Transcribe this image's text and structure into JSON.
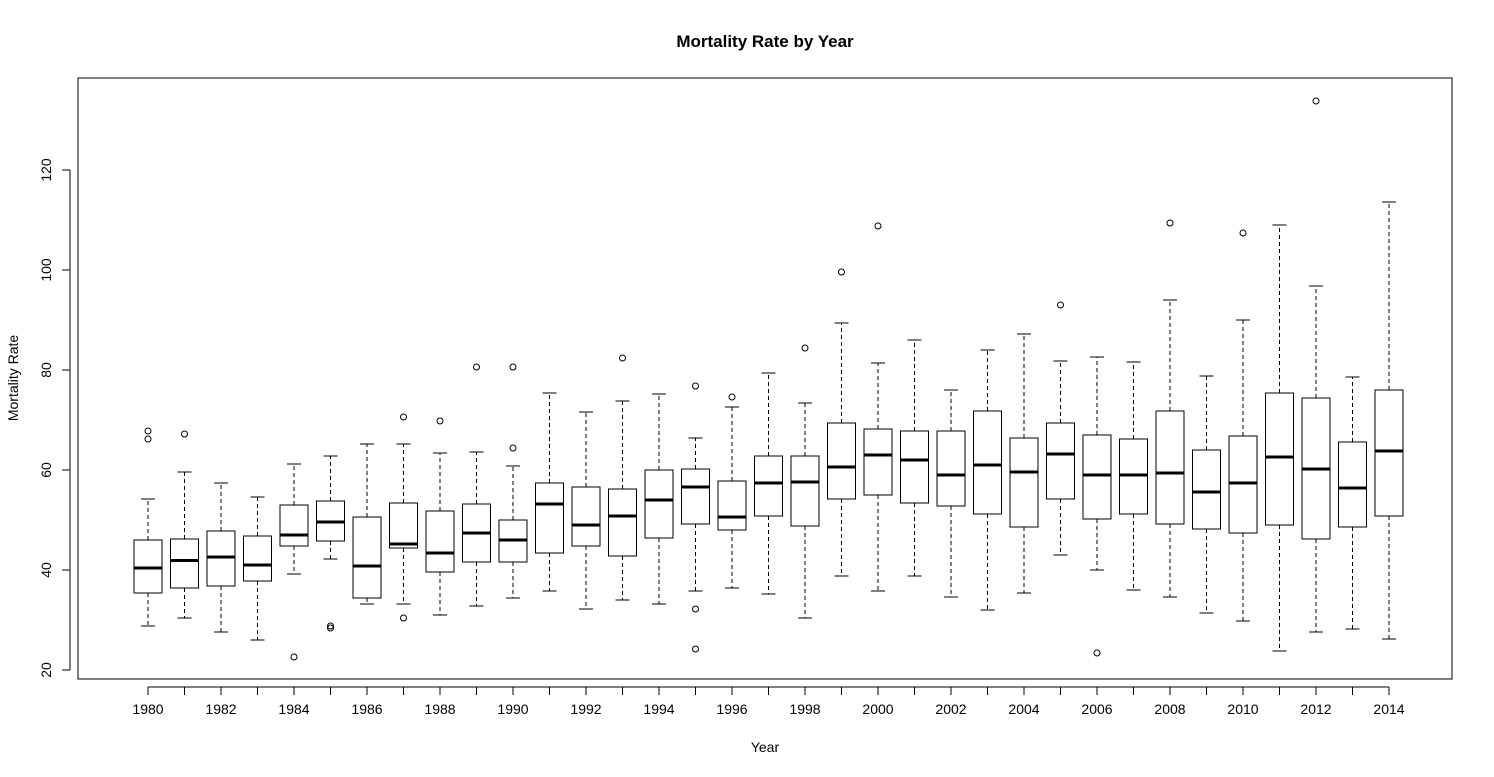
{
  "chart_data": {
    "type": "boxplot",
    "title": "Mortality Rate by Year",
    "xlabel": "Year",
    "ylabel": "Mortality Rate",
    "ylim": [
      18,
      138
    ],
    "yticks": [
      20,
      40,
      60,
      80,
      100,
      120
    ],
    "xtick_labels": [
      "1980",
      "1982",
      "1984",
      "1986",
      "1988",
      "1990",
      "1992",
      "1994",
      "1996",
      "1998",
      "2000",
      "2002",
      "2004",
      "2006",
      "2008",
      "2010",
      "2012",
      "2014"
    ],
    "grid": false,
    "legend": "none",
    "boxes": [
      {
        "year": "1980",
        "whisker_low": 28.8,
        "q1": 35.4,
        "median": 40.4,
        "q3": 46.0,
        "whisker_high": 54.2,
        "outliers": [
          66.2,
          67.8
        ]
      },
      {
        "year": "1981",
        "whisker_low": 30.4,
        "q1": 36.4,
        "median": 41.9,
        "q3": 46.2,
        "whisker_high": 59.6,
        "outliers": [
          67.2
        ]
      },
      {
        "year": "1982",
        "whisker_low": 27.6,
        "q1": 36.8,
        "median": 42.6,
        "q3": 47.8,
        "whisker_high": 57.4,
        "outliers": []
      },
      {
        "year": "1983",
        "whisker_low": 26.0,
        "q1": 37.8,
        "median": 41.0,
        "q3": 46.8,
        "whisker_high": 54.6,
        "outliers": []
      },
      {
        "year": "1984",
        "whisker_low": 39.2,
        "q1": 44.8,
        "median": 47.0,
        "q3": 53.0,
        "whisker_high": 61.2,
        "outliers": [
          22.6
        ]
      },
      {
        "year": "1985",
        "whisker_low": 42.2,
        "q1": 45.8,
        "median": 49.6,
        "q3": 53.8,
        "whisker_high": 62.8,
        "outliers": [
          28.4,
          28.8
        ]
      },
      {
        "year": "1986",
        "whisker_low": 33.2,
        "q1": 34.4,
        "median": 40.8,
        "q3": 50.6,
        "whisker_high": 65.2,
        "outliers": []
      },
      {
        "year": "1987",
        "whisker_low": 33.2,
        "q1": 44.4,
        "median": 45.2,
        "q3": 53.4,
        "whisker_high": 65.2,
        "outliers": [
          30.4,
          70.6
        ]
      },
      {
        "year": "1988",
        "whisker_low": 31.0,
        "q1": 39.6,
        "median": 43.4,
        "q3": 51.8,
        "whisker_high": 63.4,
        "outliers": [
          69.8
        ]
      },
      {
        "year": "1989",
        "whisker_low": 32.8,
        "q1": 41.6,
        "median": 47.4,
        "q3": 53.2,
        "whisker_high": 63.6,
        "outliers": [
          80.6
        ]
      },
      {
        "year": "1990",
        "whisker_low": 34.4,
        "q1": 41.6,
        "median": 46.0,
        "q3": 50.0,
        "whisker_high": 60.8,
        "outliers": [
          64.4,
          80.6
        ]
      },
      {
        "year": "1991",
        "whisker_low": 35.8,
        "q1": 43.4,
        "median": 53.2,
        "q3": 57.4,
        "whisker_high": 75.4,
        "outliers": []
      },
      {
        "year": "1992",
        "whisker_low": 32.2,
        "q1": 44.8,
        "median": 49.0,
        "q3": 56.6,
        "whisker_high": 71.6,
        "outliers": []
      },
      {
        "year": "1993",
        "whisker_low": 34.0,
        "q1": 42.8,
        "median": 50.8,
        "q3": 56.2,
        "whisker_high": 73.8,
        "outliers": [
          82.4
        ]
      },
      {
        "year": "1994",
        "whisker_low": 33.2,
        "q1": 46.4,
        "median": 54.0,
        "q3": 60.0,
        "whisker_high": 75.2,
        "outliers": []
      },
      {
        "year": "1995",
        "whisker_low": 35.8,
        "q1": 49.2,
        "median": 56.6,
        "q3": 60.2,
        "whisker_high": 66.4,
        "outliers": [
          24.2,
          32.2,
          76.8
        ]
      },
      {
        "year": "1996",
        "whisker_low": 36.4,
        "q1": 48.0,
        "median": 50.6,
        "q3": 57.8,
        "whisker_high": 72.6,
        "outliers": [
          74.6
        ]
      },
      {
        "year": "1997",
        "whisker_low": 35.2,
        "q1": 50.8,
        "median": 57.4,
        "q3": 62.8,
        "whisker_high": 79.4,
        "outliers": []
      },
      {
        "year": "1998",
        "whisker_low": 30.4,
        "q1": 48.8,
        "median": 57.6,
        "q3": 62.8,
        "whisker_high": 73.4,
        "outliers": [
          84.4
        ]
      },
      {
        "year": "1999",
        "whisker_low": 38.8,
        "q1": 54.2,
        "median": 60.6,
        "q3": 69.4,
        "whisker_high": 89.4,
        "outliers": [
          99.6
        ]
      },
      {
        "year": "2000",
        "whisker_low": 35.8,
        "q1": 55.0,
        "median": 63.0,
        "q3": 68.2,
        "whisker_high": 81.4,
        "outliers": [
          108.8
        ]
      },
      {
        "year": "2001",
        "whisker_low": 38.8,
        "q1": 53.4,
        "median": 62.0,
        "q3": 67.8,
        "whisker_high": 86.0,
        "outliers": []
      },
      {
        "year": "2002",
        "whisker_low": 34.6,
        "q1": 52.8,
        "median": 59.0,
        "q3": 67.8,
        "whisker_high": 76.0,
        "outliers": []
      },
      {
        "year": "2003",
        "whisker_low": 32.0,
        "q1": 51.2,
        "median": 61.0,
        "q3": 71.8,
        "whisker_high": 84.0,
        "outliers": []
      },
      {
        "year": "2004",
        "whisker_low": 35.4,
        "q1": 48.6,
        "median": 59.6,
        "q3": 66.4,
        "whisker_high": 87.2,
        "outliers": []
      },
      {
        "year": "2005",
        "whisker_low": 43.0,
        "q1": 54.2,
        "median": 63.2,
        "q3": 69.4,
        "whisker_high": 81.8,
        "outliers": [
          93.0
        ]
      },
      {
        "year": "2006",
        "whisker_low": 40.0,
        "q1": 50.2,
        "median": 59.0,
        "q3": 67.0,
        "whisker_high": 82.6,
        "outliers": [
          23.4
        ]
      },
      {
        "year": "2007",
        "whisker_low": 36.0,
        "q1": 51.2,
        "median": 59.0,
        "q3": 66.2,
        "whisker_high": 81.6,
        "outliers": []
      },
      {
        "year": "2008",
        "whisker_low": 34.6,
        "q1": 49.2,
        "median": 59.4,
        "q3": 71.8,
        "whisker_high": 94.0,
        "outliers": [
          109.4
        ]
      },
      {
        "year": "2009",
        "whisker_low": 31.4,
        "q1": 48.2,
        "median": 55.6,
        "q3": 64.0,
        "whisker_high": 78.8,
        "outliers": []
      },
      {
        "year": "2010",
        "whisker_low": 29.8,
        "q1": 47.4,
        "median": 57.4,
        "q3": 66.8,
        "whisker_high": 90.0,
        "outliers": [
          107.4
        ]
      },
      {
        "year": "2011",
        "whisker_low": 23.8,
        "q1": 49.0,
        "median": 62.6,
        "q3": 75.4,
        "whisker_high": 109.0,
        "outliers": []
      },
      {
        "year": "2012",
        "whisker_low": 27.6,
        "q1": 46.2,
        "median": 60.2,
        "q3": 74.4,
        "whisker_high": 96.8,
        "outliers": [
          133.8
        ]
      },
      {
        "year": "2013",
        "whisker_low": 28.2,
        "q1": 48.6,
        "median": 56.4,
        "q3": 65.6,
        "whisker_high": 78.6,
        "outliers": []
      },
      {
        "year": "2014",
        "whisker_low": 26.2,
        "q1": 50.8,
        "median": 63.8,
        "q3": 76.0,
        "whisker_high": 113.6,
        "outliers": []
      }
    ]
  }
}
